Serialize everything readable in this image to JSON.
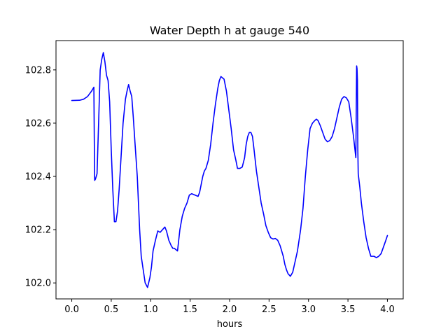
{
  "chart_data": {
    "type": "line",
    "title": "Water Depth h at gauge 540",
    "xlabel": "hours",
    "ylabel": "",
    "xlim": [
      -0.2,
      4.2
    ],
    "ylim": [
      101.94,
      102.91
    ],
    "xticks": [
      0.0,
      0.5,
      1.0,
      1.5,
      2.0,
      2.5,
      3.0,
      3.5,
      4.0
    ],
    "xtick_labels": [
      "0.0",
      "0.5",
      "1.0",
      "1.5",
      "2.0",
      "2.5",
      "3.0",
      "3.5",
      "4.0"
    ],
    "yticks": [
      102.0,
      102.2,
      102.4,
      102.6,
      102.8
    ],
    "ytick_labels": [
      "102.0",
      "102.2",
      "102.4",
      "102.6",
      "102.8"
    ],
    "grid": false,
    "series": [
      {
        "color": "#0000ff",
        "x": [
          0.0,
          0.1,
          0.15,
          0.2,
          0.25,
          0.28,
          0.285,
          0.29,
          0.3,
          0.32,
          0.34,
          0.36,
          0.38,
          0.4,
          0.42,
          0.44,
          0.46,
          0.48,
          0.5,
          0.52,
          0.54,
          0.56,
          0.58,
          0.6,
          0.62,
          0.65,
          0.68,
          0.7,
          0.72,
          0.74,
          0.76,
          0.78,
          0.8,
          0.83,
          0.86,
          0.88,
          0.9,
          0.93,
          0.96,
          0.99,
          1.01,
          1.03,
          1.06,
          1.09,
          1.12,
          1.15,
          1.18,
          1.2,
          1.23,
          1.26,
          1.28,
          1.3,
          1.32,
          1.34,
          1.37,
          1.4,
          1.43,
          1.46,
          1.49,
          1.52,
          1.56,
          1.6,
          1.62,
          1.64,
          1.66,
          1.68,
          1.7,
          1.73,
          1.76,
          1.79,
          1.82,
          1.85,
          1.87,
          1.89,
          1.91,
          1.93,
          1.96,
          1.99,
          2.02,
          2.05,
          2.08,
          2.1,
          2.13,
          2.16,
          2.19,
          2.21,
          2.23,
          2.25,
          2.27,
          2.29,
          2.31,
          2.34,
          2.37,
          2.4,
          2.43,
          2.46,
          2.49,
          2.52,
          2.55,
          2.58,
          2.61,
          2.64,
          2.66,
          2.68,
          2.7,
          2.72,
          2.74,
          2.77,
          2.8,
          2.83,
          2.86,
          2.9,
          2.93,
          2.96,
          2.99,
          3.02,
          3.05,
          3.08,
          3.1,
          3.12,
          3.15,
          3.18,
          3.21,
          3.24,
          3.27,
          3.3,
          3.33,
          3.36,
          3.39,
          3.42,
          3.45,
          3.48,
          3.51,
          3.54,
          3.57,
          3.6,
          3.61,
          3.615,
          3.62,
          3.625,
          3.63,
          3.65,
          3.67,
          3.7,
          3.73,
          3.76,
          3.79,
          3.81,
          3.83,
          3.86,
          3.89,
          3.92,
          3.95,
          3.98,
          4.0
        ],
        "y": [
          102.685,
          102.686,
          102.69,
          102.7,
          102.72,
          102.735,
          102.55,
          102.385,
          102.39,
          102.41,
          102.6,
          102.8,
          102.84,
          102.865,
          102.83,
          102.78,
          102.76,
          102.68,
          102.5,
          102.35,
          102.23,
          102.23,
          102.27,
          102.35,
          102.45,
          102.6,
          102.69,
          102.72,
          102.745,
          102.72,
          102.7,
          102.62,
          102.53,
          102.4,
          102.2,
          102.1,
          102.06,
          102.0,
          101.983,
          102.02,
          102.06,
          102.12,
          102.16,
          102.195,
          102.19,
          102.2,
          102.21,
          102.195,
          102.16,
          102.14,
          102.13,
          102.13,
          102.125,
          102.12,
          102.2,
          102.25,
          102.28,
          102.3,
          102.33,
          102.335,
          102.33,
          102.325,
          102.34,
          102.37,
          102.4,
          102.42,
          102.43,
          102.46,
          102.52,
          102.6,
          102.67,
          102.73,
          102.76,
          102.775,
          102.77,
          102.765,
          102.72,
          102.65,
          102.58,
          102.5,
          102.46,
          102.43,
          102.43,
          102.435,
          102.47,
          102.52,
          102.55,
          102.565,
          102.565,
          102.55,
          102.5,
          102.42,
          102.36,
          102.3,
          102.26,
          102.215,
          102.19,
          102.17,
          102.165,
          102.167,
          102.16,
          102.14,
          102.12,
          102.1,
          102.07,
          102.05,
          102.035,
          102.025,
          102.04,
          102.08,
          102.12,
          102.2,
          102.28,
          102.4,
          102.5,
          102.58,
          102.6,
          102.61,
          102.615,
          102.61,
          102.59,
          102.565,
          102.54,
          102.53,
          102.535,
          102.55,
          102.58,
          102.62,
          102.66,
          102.69,
          102.7,
          102.695,
          102.68,
          102.62,
          102.55,
          102.47,
          102.815,
          102.805,
          102.76,
          102.5,
          102.41,
          102.36,
          102.3,
          102.23,
          102.17,
          102.13,
          102.1,
          102.1,
          102.1,
          102.095,
          102.1,
          102.11,
          102.135,
          102.16,
          102.178
        ]
      }
    ]
  }
}
